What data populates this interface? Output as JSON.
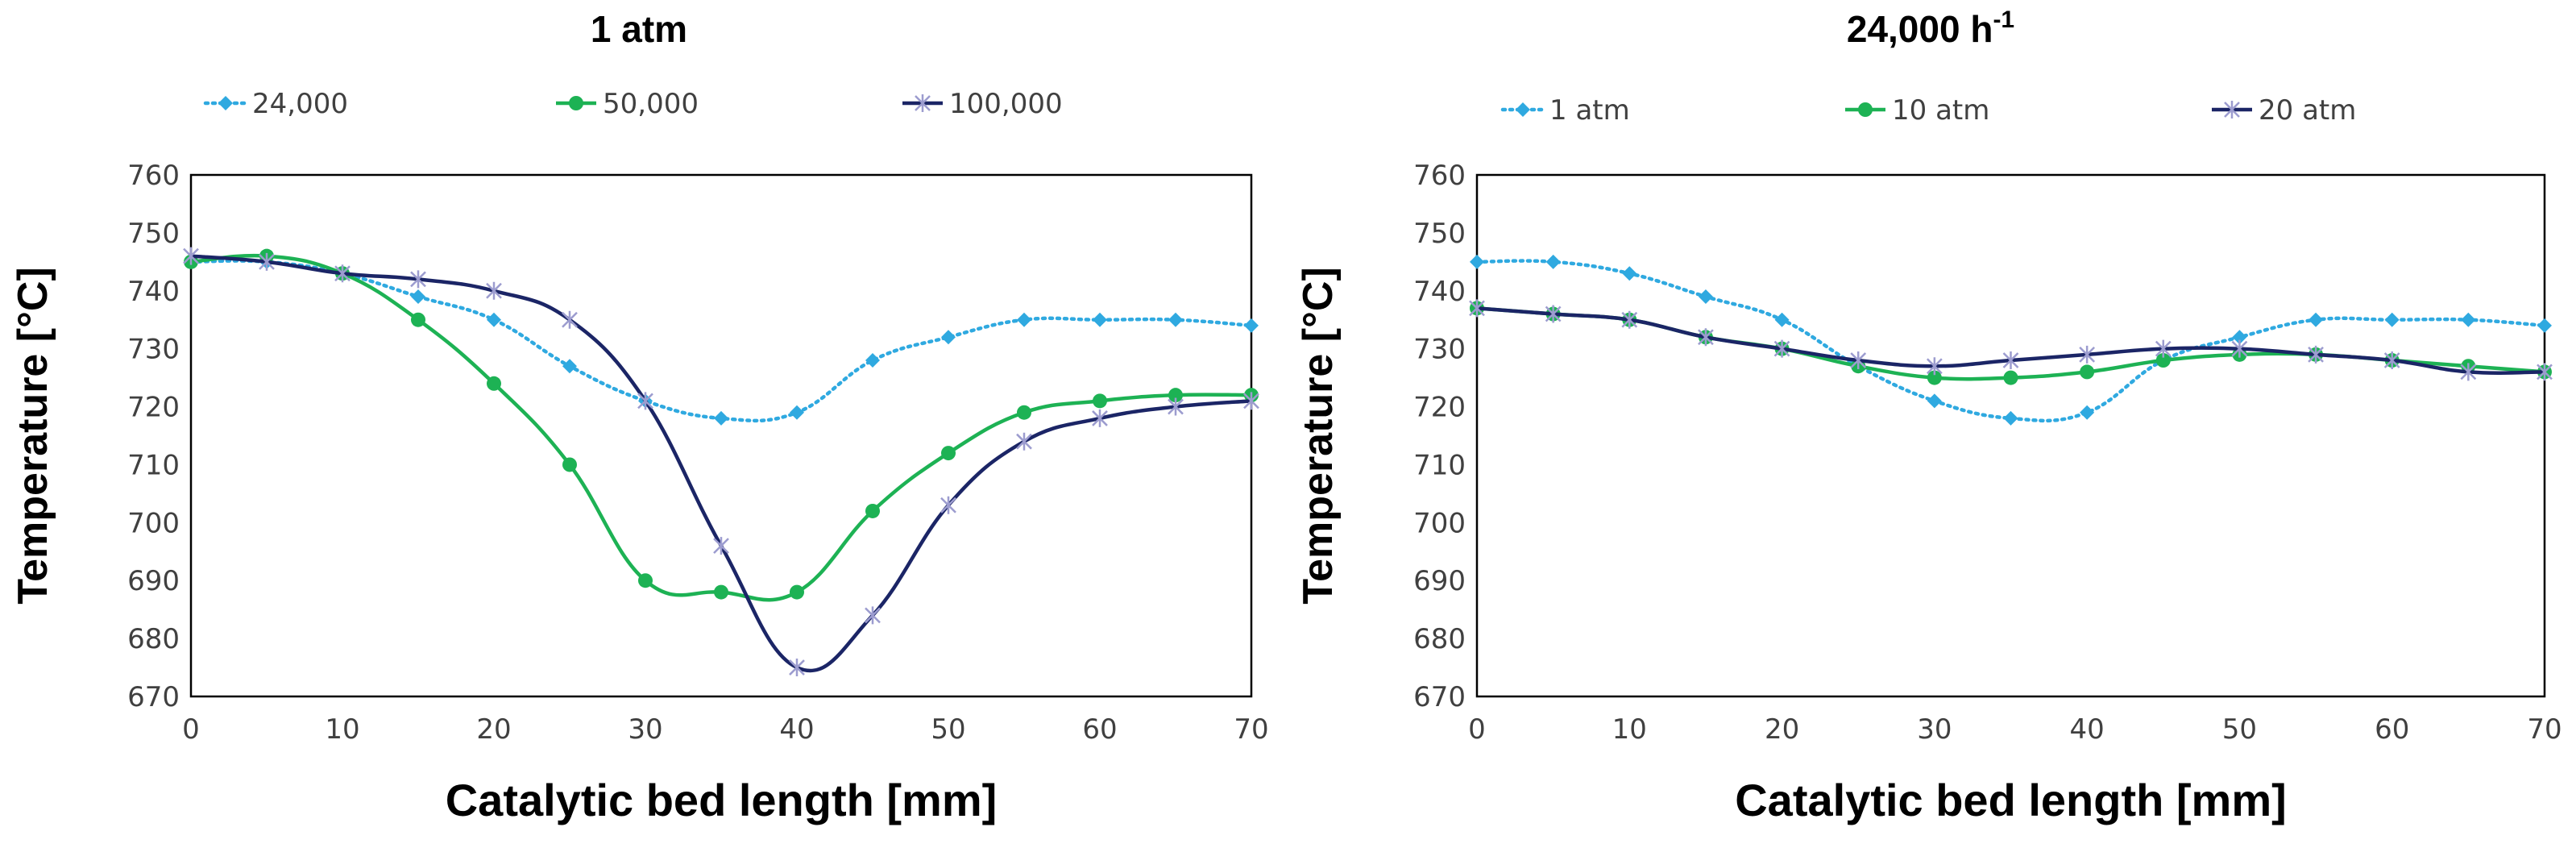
{
  "chart_data": [
    {
      "type": "line",
      "title": "1 atm",
      "xlabel": "Catalytic bed length [mm]",
      "ylabel": "Temperature [°C]",
      "xlim": [
        0,
        70
      ],
      "ylim": [
        670,
        760
      ],
      "xticks": [
        0,
        10,
        20,
        30,
        40,
        50,
        60,
        70
      ],
      "yticks": [
        670,
        680,
        690,
        700,
        710,
        720,
        730,
        740,
        750,
        760
      ],
      "grid": false,
      "legend_position": "top",
      "x": [
        0,
        5,
        10,
        15,
        20,
        25,
        30,
        35,
        40,
        45,
        50,
        55,
        60,
        65,
        70
      ],
      "series": [
        {
          "name": "24,000",
          "color": "#2FA9E0",
          "marker": "diamond",
          "dashed": true,
          "values": [
            745,
            745,
            743,
            739,
            735,
            727,
            721,
            718,
            719,
            728,
            732,
            735,
            735,
            735,
            734
          ]
        },
        {
          "name": "50,000",
          "color": "#1DB254",
          "marker": "circle",
          "dashed": false,
          "values": [
            745,
            746,
            743,
            735,
            724,
            710,
            690,
            688,
            688,
            702,
            712,
            719,
            721,
            722,
            722
          ]
        },
        {
          "name": "100,000",
          "color": "#1B2566",
          "marker": "star",
          "dashed": false,
          "values": [
            746,
            745,
            743,
            742,
            740,
            735,
            721,
            696,
            675,
            684,
            703,
            714,
            718,
            720,
            721
          ]
        }
      ]
    },
    {
      "type": "line",
      "title": "24,000 h",
      "title_superscript": "-1",
      "xlabel": "Catalytic bed length [mm]",
      "ylabel": "Temperature [°C]",
      "xlim": [
        0,
        70
      ],
      "ylim": [
        670,
        760
      ],
      "xticks": [
        0,
        10,
        20,
        30,
        40,
        50,
        60,
        70
      ],
      "yticks": [
        670,
        680,
        690,
        700,
        710,
        720,
        730,
        740,
        750,
        760
      ],
      "grid": false,
      "legend_position": "top",
      "x": [
        0,
        5,
        10,
        15,
        20,
        25,
        30,
        35,
        40,
        45,
        50,
        55,
        60,
        65,
        70
      ],
      "series": [
        {
          "name": "1 atm",
          "color": "#2FA9E0",
          "marker": "diamond",
          "dashed": true,
          "values": [
            745,
            745,
            743,
            739,
            735,
            727,
            721,
            718,
            719,
            728,
            732,
            735,
            735,
            735,
            734
          ]
        },
        {
          "name": "10 atm",
          "color": "#1DB254",
          "marker": "circle",
          "dashed": false,
          "values": [
            737,
            736,
            735,
            732,
            730,
            727,
            725,
            725,
            726,
            728,
            729,
            729,
            728,
            727,
            726
          ]
        },
        {
          "name": "20 atm",
          "color": "#1B2566",
          "marker": "star",
          "dashed": false,
          "values": [
            737,
            736,
            735,
            732,
            730,
            728,
            727,
            728,
            729,
            730,
            730,
            729,
            728,
            726,
            726
          ]
        }
      ]
    }
  ]
}
